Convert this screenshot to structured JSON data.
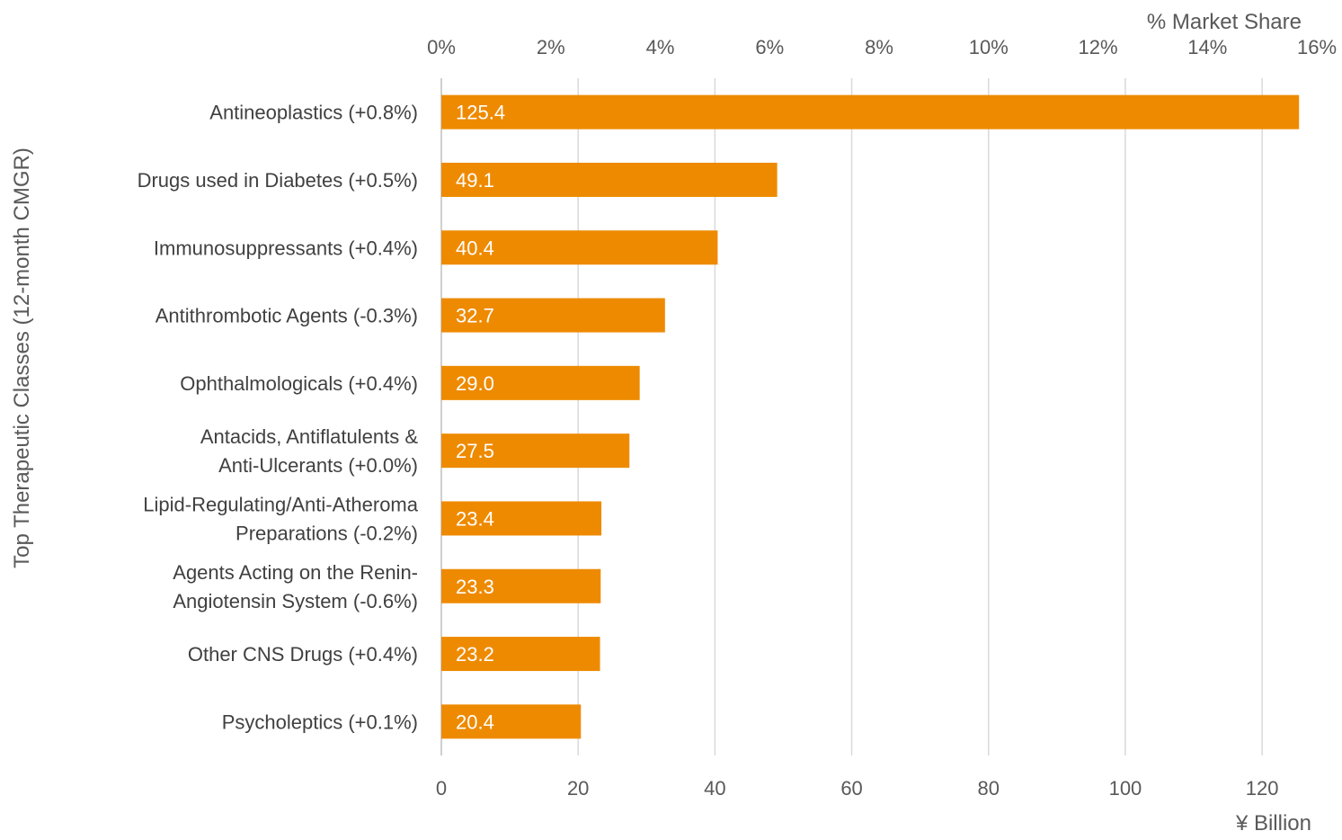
{
  "chart_data": {
    "type": "bar",
    "orientation": "horizontal",
    "ylabel": "Top Therapeutic Classes (12-month CMGR)",
    "xlabel": "¥ Billion",
    "x2label": "% Market Share",
    "categories": [
      [
        "Antineoplastics (+0.8%)"
      ],
      [
        "Drugs used in Diabetes (+0.5%)"
      ],
      [
        "Immunosuppressants (+0.4%)"
      ],
      [
        "Antithrombotic Agents (-0.3%)"
      ],
      [
        "Ophthalmologicals (+0.4%)"
      ],
      [
        "Antacids, Antiflatulents &",
        "Anti-Ulcerants (+0.0%)"
      ],
      [
        "Lipid-Regulating/Anti-Atheroma",
        "Preparations (-0.2%)"
      ],
      [
        "Agents Acting on the Renin-",
        "Angiotensin System (-0.6%)"
      ],
      [
        "Other CNS Drugs (+0.4%)"
      ],
      [
        "Psycholeptics (+0.1%)"
      ]
    ],
    "values": [
      125.4,
      49.1,
      40.4,
      32.7,
      29.0,
      27.5,
      23.4,
      23.3,
      23.2,
      20.4
    ],
    "value_labels": [
      "125.4",
      "49.1",
      "40.4",
      "32.7",
      "29.0",
      "27.5",
      "23.4",
      "23.3",
      "23.2",
      "20.4"
    ],
    "xlim": [
      0,
      128
    ],
    "xticks": [
      0,
      20,
      40,
      60,
      80,
      100,
      120
    ],
    "x2lim": [
      0,
      16
    ],
    "x2ticks": [
      0,
      2,
      4,
      6,
      8,
      10,
      12,
      14,
      16
    ],
    "x2tick_labels": [
      "0%",
      "2%",
      "4%",
      "6%",
      "8%",
      "10%",
      "12%",
      "14%",
      "16%"
    ],
    "grid": true,
    "bar_color": "#EE8A00",
    "grid_color": "#D9D9D9"
  }
}
